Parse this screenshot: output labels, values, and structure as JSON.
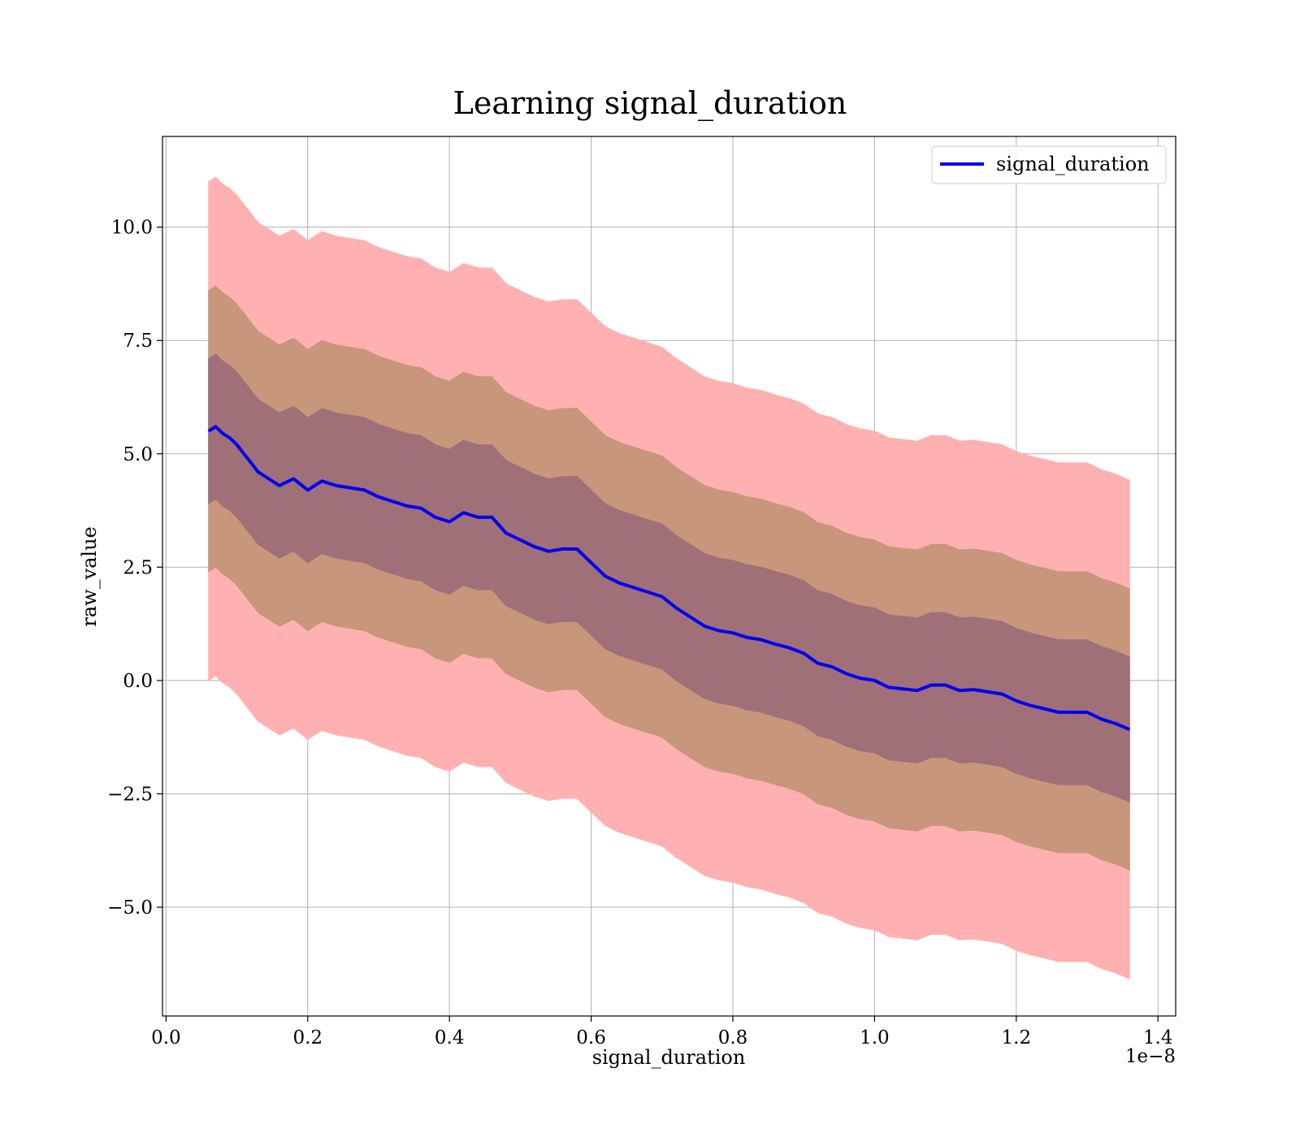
{
  "chart_data": {
    "type": "line",
    "title": "Learning signal_duration",
    "xlabel": "signal_duration",
    "ylabel": "raw_value",
    "x_offset_label": "1e−8",
    "xlim": [
      -0.005,
      1.425
    ],
    "ylim": [
      -7.4,
      12.0
    ],
    "x_ticks": [
      0.0,
      0.2,
      0.4,
      0.6,
      0.8,
      1.0,
      1.2,
      1.4
    ],
    "x_tick_labels": [
      "0.0",
      "0.2",
      "0.4",
      "0.6",
      "0.8",
      "1.0",
      "1.2",
      "1.4"
    ],
    "y_ticks": [
      -5.0,
      -2.5,
      0.0,
      2.5,
      5.0,
      7.5,
      10.0
    ],
    "y_tick_labels": [
      "−5.0",
      "−2.5",
      "0.0",
      "2.5",
      "5.0",
      "7.5",
      "10.0"
    ],
    "grid": true,
    "legend": {
      "position": "top-right",
      "entries": [
        "signal_duration"
      ]
    },
    "colors": {
      "line": "#0000ee",
      "band_outer": "#ffb0b1",
      "band_middle": "#c8967a",
      "band_inner": "#a07078"
    },
    "band_half_widths": [
      1.6,
      3.1,
      5.5
    ],
    "series": [
      {
        "name": "signal_duration",
        "x": [
          0.06,
          0.07,
          0.08,
          0.09,
          0.1,
          0.11,
          0.12,
          0.13,
          0.14,
          0.16,
          0.18,
          0.2,
          0.22,
          0.24,
          0.26,
          0.28,
          0.3,
          0.32,
          0.34,
          0.36,
          0.38,
          0.4,
          0.42,
          0.44,
          0.46,
          0.48,
          0.5,
          0.52,
          0.54,
          0.56,
          0.58,
          0.6,
          0.62,
          0.64,
          0.66,
          0.68,
          0.7,
          0.72,
          0.74,
          0.76,
          0.78,
          0.8,
          0.82,
          0.84,
          0.86,
          0.88,
          0.9,
          0.92,
          0.94,
          0.96,
          0.98,
          1.0,
          1.02,
          1.06,
          1.08,
          1.1,
          1.12,
          1.14,
          1.18,
          1.2,
          1.22,
          1.26,
          1.3,
          1.32,
          1.34,
          1.36
        ],
        "y": [
          5.5,
          5.6,
          5.45,
          5.35,
          5.2,
          5.0,
          4.8,
          4.6,
          4.5,
          4.3,
          4.45,
          4.2,
          4.4,
          4.3,
          4.25,
          4.2,
          4.05,
          3.95,
          3.85,
          3.8,
          3.6,
          3.5,
          3.7,
          3.6,
          3.6,
          3.25,
          3.1,
          2.95,
          2.85,
          2.9,
          2.9,
          2.6,
          2.3,
          2.15,
          2.05,
          1.95,
          1.85,
          1.6,
          1.4,
          1.2,
          1.1,
          1.05,
          0.95,
          0.9,
          0.8,
          0.72,
          0.6,
          0.38,
          0.3,
          0.15,
          0.05,
          0.0,
          -0.15,
          -0.22,
          -0.1,
          -0.1,
          -0.22,
          -0.2,
          -0.3,
          -0.45,
          -0.55,
          -0.7,
          -0.7,
          -0.85,
          -0.95,
          -1.08
        ]
      }
    ]
  }
}
